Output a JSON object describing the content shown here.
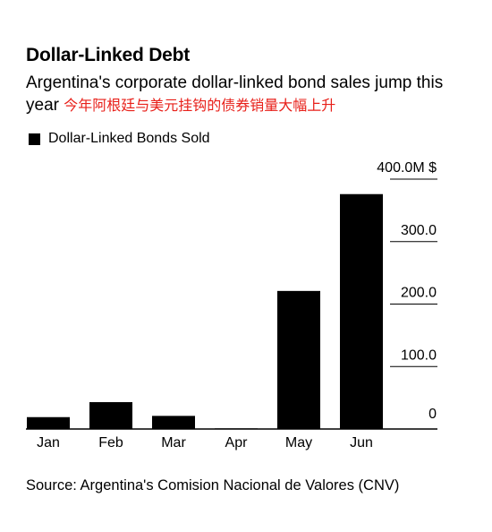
{
  "header": {
    "title": "Dollar-Linked Debt",
    "subtitle": "Argentina's corporate dollar-linked bond sales jump this year",
    "subtitle_cn": "今年阿根廷与美元挂钩的债券销量大幅上升"
  },
  "legend": {
    "label": "Dollar-Linked Bonds Sold"
  },
  "source": "Source: Argentina's Comision Nacional de Valores (CNV)",
  "chart_data": {
    "type": "bar",
    "title": "Dollar-Linked Debt",
    "categories": [
      "Jan",
      "Feb",
      "Mar",
      "Apr",
      "May",
      "Jun"
    ],
    "series": [
      {
        "name": "Dollar-Linked Bonds Sold",
        "values": [
          19,
          43,
          21,
          1,
          221,
          376
        ]
      }
    ],
    "ylim": [
      0,
      400
    ],
    "yticks": [
      {
        "value": 0,
        "label": "0"
      },
      {
        "value": 100,
        "label": "100.0"
      },
      {
        "value": 200,
        "label": "200.0"
      },
      {
        "value": 300,
        "label": "300.0"
      },
      {
        "value": 400,
        "label": "400.0M $"
      }
    ],
    "y_axis_side": "right",
    "grid": true,
    "legend_position": "top-left",
    "bar_color": "#000000"
  }
}
